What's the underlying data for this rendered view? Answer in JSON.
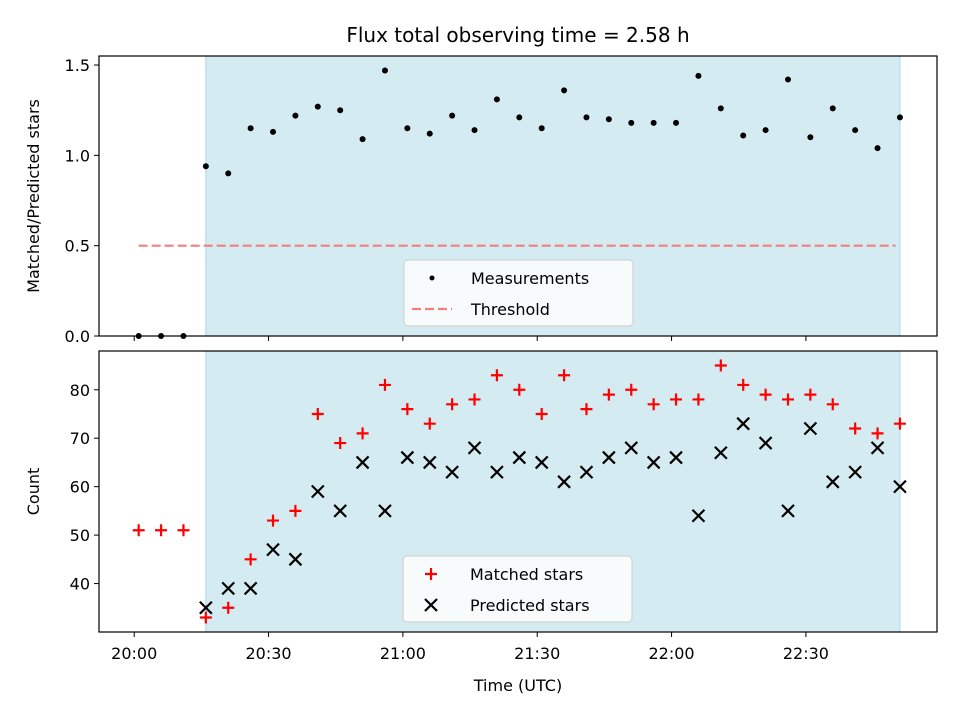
{
  "chart_data": [
    {
      "type": "scatter",
      "title": "Flux total observing time = 2.58 h",
      "ylabel": "Matched/Predicted stars",
      "xlabel": "",
      "ylim": [
        0,
        1.55
      ],
      "yticks": [
        0.0,
        0.5,
        1.0,
        1.5
      ],
      "ytick_labels": [
        "0.0",
        "0.5",
        "1.0",
        "1.5"
      ],
      "x_unit": "minutes after 20:00 UTC",
      "shaded_interval": [
        "20:16",
        "22:51"
      ],
      "threshold": {
        "name": "Threshold",
        "value": 0.5,
        "x_range": [
          "20:01",
          "22:50"
        ],
        "color": "#f08080"
      },
      "legend_position": "lower-center",
      "series": [
        {
          "name": "Measurements",
          "color": "#000000",
          "marker": "dot",
          "x": [
            "20:01",
            "20:06",
            "20:11",
            "20:16",
            "20:21",
            "20:26",
            "20:31",
            "20:36",
            "20:41",
            "20:46",
            "20:51",
            "20:56",
            "21:01",
            "21:06",
            "21:11",
            "21:16",
            "21:21",
            "21:26",
            "21:31",
            "21:36",
            "21:41",
            "21:46",
            "21:51",
            "21:56",
            "22:01",
            "22:06",
            "22:11",
            "22:16",
            "22:21",
            "22:26",
            "22:31",
            "22:36",
            "22:41",
            "22:46",
            "22:51"
          ],
          "y": [
            0.0,
            0.0,
            0.0,
            0.94,
            0.9,
            1.15,
            1.13,
            1.22,
            1.27,
            1.25,
            1.09,
            1.47,
            1.15,
            1.12,
            1.22,
            1.14,
            1.31,
            1.21,
            1.15,
            1.36,
            1.21,
            1.2,
            1.18,
            1.18,
            1.18,
            1.44,
            1.26,
            1.11,
            1.14,
            1.42,
            1.1,
            1.26,
            1.14,
            1.04,
            1.21
          ]
        }
      ]
    },
    {
      "type": "scatter",
      "title": "",
      "ylabel": "Count",
      "xlabel": "Time (UTC)",
      "ylim": [
        30,
        88
      ],
      "yticks": [
        40,
        50,
        60,
        70,
        80
      ],
      "ytick_labels": [
        "40",
        "50",
        "60",
        "70",
        "80"
      ],
      "x_ticks": [
        "20:00",
        "20:30",
        "21:00",
        "21:30",
        "22:00",
        "22:30"
      ],
      "shaded_interval": [
        "20:16",
        "22:51"
      ],
      "legend_position": "lower-center",
      "series": [
        {
          "name": "Matched stars",
          "color": "#ff0000",
          "marker": "plus",
          "x": [
            "20:01",
            "20:06",
            "20:11",
            "20:16",
            "20:21",
            "20:26",
            "20:31",
            "20:36",
            "20:41",
            "20:46",
            "20:51",
            "20:56",
            "21:01",
            "21:06",
            "21:11",
            "21:16",
            "21:21",
            "21:26",
            "21:31",
            "21:36",
            "21:41",
            "21:46",
            "21:51",
            "21:56",
            "22:01",
            "22:06",
            "22:11",
            "22:16",
            "22:21",
            "22:26",
            "22:31",
            "22:36",
            "22:41",
            "22:46",
            "22:51"
          ],
          "y": [
            51,
            51,
            51,
            33,
            35,
            45,
            53,
            55,
            75,
            69,
            71,
            81,
            76,
            73,
            77,
            78,
            83,
            80,
            75,
            83,
            76,
            79,
            80,
            77,
            78,
            78,
            85,
            81,
            79,
            78,
            79,
            77,
            72,
            71,
            73
          ]
        },
        {
          "name": "Predicted stars",
          "color": "#000000",
          "marker": "cross",
          "x": [
            "20:16",
            "20:21",
            "20:26",
            "20:31",
            "20:36",
            "20:41",
            "20:46",
            "20:51",
            "20:56",
            "21:01",
            "21:06",
            "21:11",
            "21:16",
            "21:21",
            "21:26",
            "21:31",
            "21:36",
            "21:41",
            "21:46",
            "21:51",
            "21:56",
            "22:01",
            "22:06",
            "22:11",
            "22:16",
            "22:21",
            "22:26",
            "22:31",
            "22:36",
            "22:41",
            "22:46",
            "22:51"
          ],
          "y": [
            35,
            39,
            39,
            47,
            45,
            59,
            55,
            65,
            55,
            66,
            65,
            63,
            68,
            63,
            66,
            65,
            61,
            63,
            66,
            68,
            65,
            66,
            54,
            67,
            73,
            69,
            55,
            72,
            61,
            63,
            68,
            60
          ]
        }
      ]
    }
  ],
  "colors": {
    "shade": "#d4ebf1",
    "shade_edge": "#add8e6"
  }
}
